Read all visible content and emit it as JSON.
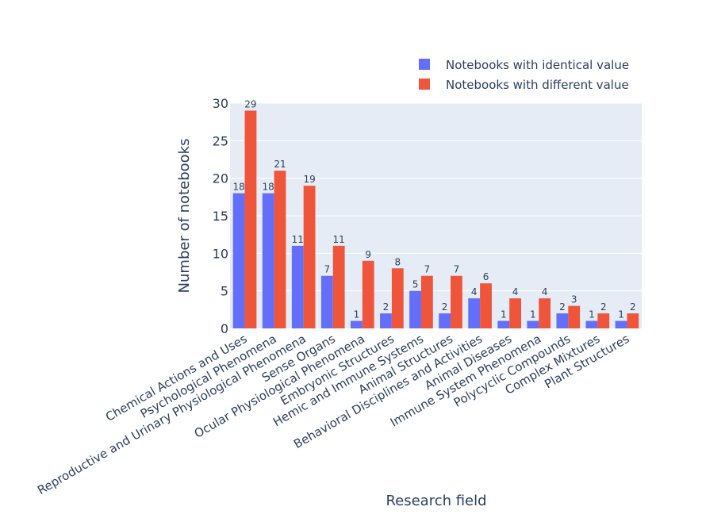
{
  "chart_data": {
    "type": "bar",
    "title": "",
    "xlabel": "Research field",
    "ylabel": "Number of notebooks",
    "ylim": [
      0,
      30
    ],
    "yticks": [
      0,
      5,
      10,
      15,
      20,
      25,
      30
    ],
    "grid": true,
    "legend_position": "top-right",
    "categories": [
      "Chemical Actions and Uses",
      "Psychological Phenomena",
      "Reproductive and Urinary Physiological Phenomena",
      "Sense Organs",
      "Ocular Physiological Phenomena",
      "Embryonic Structures",
      "Hemic and Immune Systems",
      "Animal Structures",
      "Behavioral Disciplines and Activities",
      "Animal Diseases",
      "Immune System Phenomena",
      "Polycyclic Compounds",
      "Complex Mixtures",
      "Plant Structures"
    ],
    "series": [
      {
        "name": "Notebooks with identical value",
        "color": "#636efa",
        "values": [
          18,
          18,
          11,
          7,
          1,
          2,
          5,
          2,
          4,
          1,
          1,
          2,
          1,
          1
        ]
      },
      {
        "name": "Notebooks with different value",
        "color": "#ef553b",
        "values": [
          29,
          21,
          19,
          11,
          9,
          8,
          7,
          7,
          6,
          4,
          4,
          3,
          2,
          2
        ]
      }
    ]
  }
}
